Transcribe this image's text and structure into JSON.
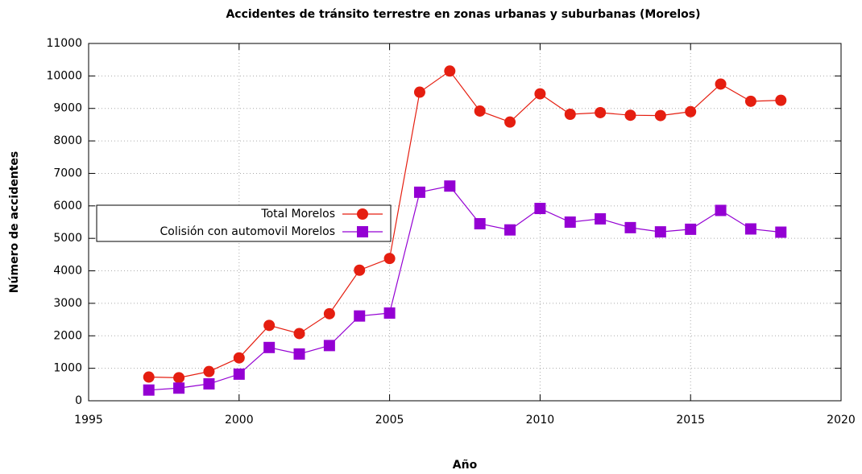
{
  "chart_data": {
    "type": "line",
    "title": "Accidentes de tránsito terrestre en zonas urbanas y suburbanas (Morelos)",
    "xlabel": "Año",
    "ylabel": "Número de accidentes",
    "x": [
      1997,
      1998,
      1999,
      2000,
      2001,
      2002,
      2003,
      2004,
      2005,
      2006,
      2007,
      2008,
      2009,
      2010,
      2011,
      2012,
      2013,
      2014,
      2015,
      2016,
      2017,
      2018
    ],
    "series": [
      {
        "name": "Total Morelos",
        "color": "#e51e10",
        "marker": "circle",
        "values": [
          730,
          710,
          900,
          1320,
          2320,
          2070,
          2680,
          4020,
          4380,
          9500,
          10150,
          8920,
          8580,
          9450,
          8820,
          8870,
          8790,
          8780,
          8900,
          9750,
          9220,
          9250
        ]
      },
      {
        "name": "Colisión con automovil Morelos",
        "color": "#9400d3",
        "marker": "square",
        "values": [
          330,
          390,
          520,
          820,
          1640,
          1440,
          1700,
          2610,
          2700,
          6420,
          6610,
          5450,
          5260,
          5920,
          5500,
          5600,
          5330,
          5200,
          5280,
          5860,
          5290,
          5190
        ]
      }
    ],
    "xlim": [
      1995,
      2020
    ],
    "xticks": [
      1995,
      2000,
      2005,
      2010,
      2015,
      2020
    ],
    "ylim": [
      0,
      11000
    ],
    "yticks": [
      0,
      1000,
      2000,
      3000,
      4000,
      5000,
      6000,
      7000,
      8000,
      9000,
      10000,
      11000
    ],
    "grid": true,
    "legend": "left"
  }
}
